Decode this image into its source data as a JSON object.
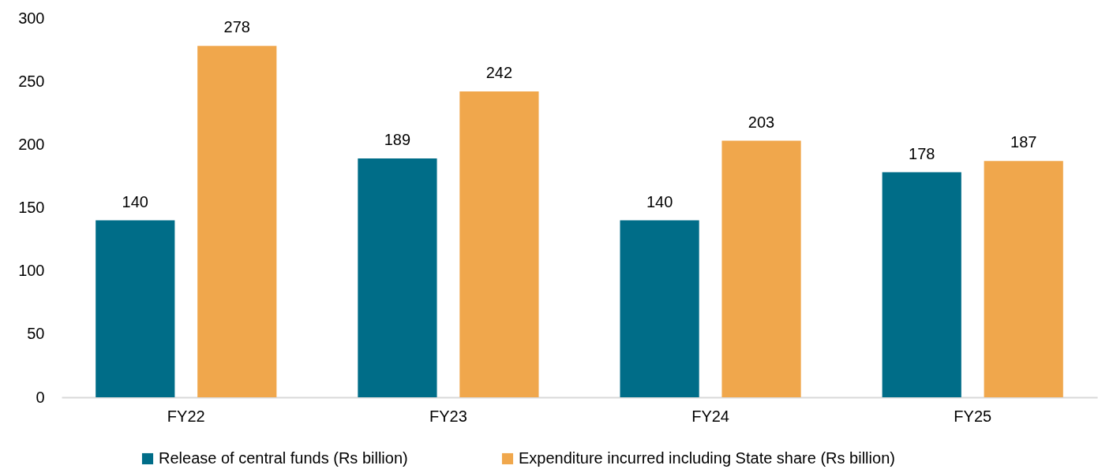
{
  "chart_data": {
    "type": "bar",
    "categories": [
      "FY22",
      "FY23",
      "FY24",
      "FY25"
    ],
    "series": [
      {
        "name": "Release of central funds (Rs billion)",
        "color": "#006d88",
        "values": [
          140,
          189,
          140,
          178
        ]
      },
      {
        "name": "Expenditure incurred including State share (Rs billion)",
        "color": "#f0a74c",
        "values": [
          278,
          242,
          203,
          187
        ]
      }
    ],
    "ylim": [
      0,
      300
    ],
    "yticks": [
      0,
      50,
      100,
      150,
      200,
      250,
      300
    ],
    "data_labels": true,
    "legend": "bottom"
  }
}
